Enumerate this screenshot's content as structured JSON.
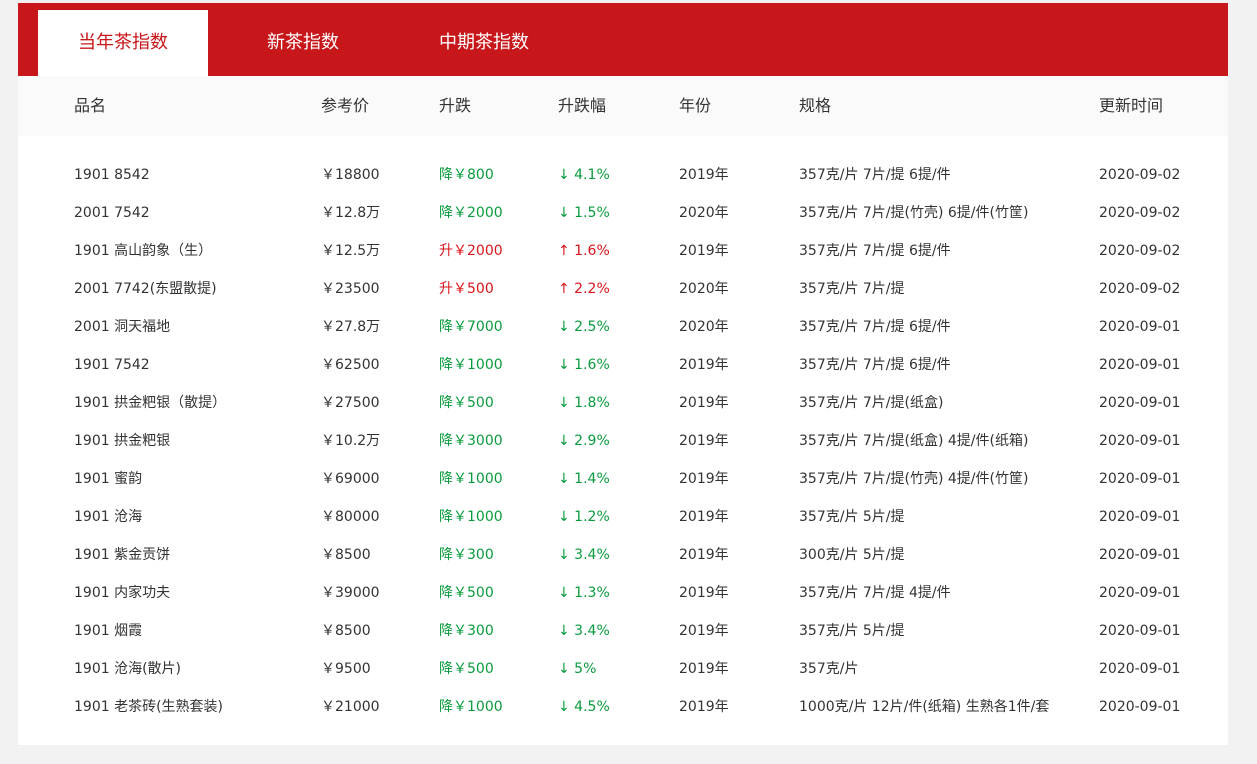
{
  "tabs": [
    {
      "label": "当年茶指数",
      "active": true
    },
    {
      "label": "新茶指数",
      "active": false
    },
    {
      "label": "中期茶指数",
      "active": false
    }
  ],
  "table": {
    "headers": [
      "品名",
      "参考价",
      "升跌",
      "升跌幅",
      "年份",
      "规格",
      "更新时间"
    ],
    "rows": [
      {
        "name": "1901 8542",
        "price": "￥18800",
        "change": "降￥800",
        "pct": "↓ 4.1%",
        "dir": "down",
        "year": "2019年",
        "spec": "357克/片 7片/提 6提/件",
        "date": "2020-09-02"
      },
      {
        "name": "2001 7542",
        "price": "￥12.8万",
        "change": "降￥2000",
        "pct": "↓ 1.5%",
        "dir": "down",
        "year": "2020年",
        "spec": "357克/片 7片/提(竹壳) 6提/件(竹筐)",
        "date": "2020-09-02"
      },
      {
        "name": "1901 高山韵象（生）",
        "price": "￥12.5万",
        "change": "升￥2000",
        "pct": "↑ 1.6%",
        "dir": "up",
        "year": "2019年",
        "spec": "357克/片 7片/提 6提/件",
        "date": "2020-09-02"
      },
      {
        "name": "2001 7742(东盟散提)",
        "price": "￥23500",
        "change": "升￥500",
        "pct": "↑ 2.2%",
        "dir": "up",
        "year": "2020年",
        "spec": "357克/片 7片/提",
        "date": "2020-09-02"
      },
      {
        "name": "2001 洞天福地",
        "price": "￥27.8万",
        "change": "降￥7000",
        "pct": "↓ 2.5%",
        "dir": "down",
        "year": "2020年",
        "spec": "357克/片 7片/提 6提/件",
        "date": "2020-09-01"
      },
      {
        "name": "1901 7542",
        "price": "￥62500",
        "change": "降￥1000",
        "pct": "↓ 1.6%",
        "dir": "down",
        "year": "2019年",
        "spec": "357克/片 7片/提 6提/件",
        "date": "2020-09-01"
      },
      {
        "name": "1901 拱金粑银（散提）",
        "price": "￥27500",
        "change": "降￥500",
        "pct": "↓ 1.8%",
        "dir": "down",
        "year": "2019年",
        "spec": "357克/片 7片/提(纸盒)",
        "date": "2020-09-01"
      },
      {
        "name": "1901 拱金粑银",
        "price": "￥10.2万",
        "change": "降￥3000",
        "pct": "↓ 2.9%",
        "dir": "down",
        "year": "2019年",
        "spec": "357克/片 7片/提(纸盒) 4提/件(纸箱)",
        "date": "2020-09-01"
      },
      {
        "name": "1901 蜜韵",
        "price": "￥69000",
        "change": "降￥1000",
        "pct": "↓ 1.4%",
        "dir": "down",
        "year": "2019年",
        "spec": "357克/片 7片/提(竹壳) 4提/件(竹筐)",
        "date": "2020-09-01"
      },
      {
        "name": "1901 沧海",
        "price": "￥80000",
        "change": "降￥1000",
        "pct": "↓ 1.2%",
        "dir": "down",
        "year": "2019年",
        "spec": "357克/片 5片/提",
        "date": "2020-09-01"
      },
      {
        "name": "1901 紫金贡饼",
        "price": "￥8500",
        "change": "降￥300",
        "pct": "↓ 3.4%",
        "dir": "down",
        "year": "2019年",
        "spec": "300克/片 5片/提",
        "date": "2020-09-01"
      },
      {
        "name": "1901 内家功夫",
        "price": "￥39000",
        "change": "降￥500",
        "pct": "↓ 1.3%",
        "dir": "down",
        "year": "2019年",
        "spec": "357克/片 7片/提 4提/件",
        "date": "2020-09-01"
      },
      {
        "name": "1901 烟霞",
        "price": "￥8500",
        "change": "降￥300",
        "pct": "↓ 3.4%",
        "dir": "down",
        "year": "2019年",
        "spec": "357克/片 5片/提",
        "date": "2020-09-01"
      },
      {
        "name": "1901 沧海(散片)",
        "price": "￥9500",
        "change": "降￥500",
        "pct": "↓ 5%",
        "dir": "down",
        "year": "2019年",
        "spec": "357克/片",
        "date": "2020-09-01"
      },
      {
        "name": "1901 老茶砖(生熟套装)",
        "price": "￥21000",
        "change": "降￥1000",
        "pct": "↓ 4.5%",
        "dir": "down",
        "year": "2019年",
        "spec": "1000克/片 12片/件(纸箱) 生熟各1件/套",
        "date": "2020-09-01"
      }
    ]
  },
  "colors": {
    "brand_red": "#c8171a",
    "down_green": "#0a9b3d",
    "up_red": "#d8161b"
  }
}
